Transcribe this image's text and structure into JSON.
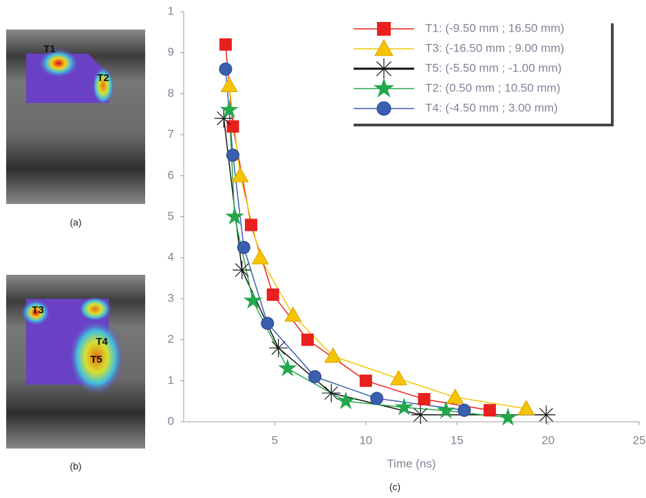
{
  "panels": [
    {
      "label": "(a)",
      "annotations": [
        "T1",
        "T2"
      ]
    },
    {
      "label": "(b)",
      "annotations": [
        "T3",
        "T4",
        "T5"
      ]
    }
  ],
  "chart_data": {
    "type": "line",
    "label": "(c)",
    "x_label": "Time (ns)",
    "xlim": [
      0,
      25
    ],
    "xticks": [
      5,
      10,
      15,
      20,
      25
    ],
    "ylim": [
      0,
      10
    ],
    "yticks": [
      0,
      1,
      2,
      3,
      4,
      5,
      6,
      7,
      8,
      9,
      {
        "value": 10,
        "label": "1"
      }
    ],
    "legend": "top-right",
    "series": [
      {
        "name": "T1: (-9.50 mm ; 16.50 mm)",
        "color": "#e8201e",
        "marker": "square",
        "x": [
          2.3,
          2.7,
          3.7,
          4.9,
          6.8,
          10.0,
          13.2,
          16.8
        ],
        "values": [
          9.2,
          7.2,
          4.8,
          3.1,
          2.0,
          1.0,
          0.55,
          0.28
        ]
      },
      {
        "name": "T3: (-16.50 mm ; 9.00 mm)",
        "color": "#f5c400",
        "marker": "triangle",
        "x": [
          2.5,
          3.1,
          4.2,
          6.0,
          8.2,
          11.8,
          14.9,
          18.8
        ],
        "values": [
          8.2,
          6.0,
          4.0,
          2.6,
          1.6,
          1.05,
          0.6,
          0.32
        ]
      },
      {
        "name": "T5: (-5.50 mm ; -1.00 mm)",
        "color": "#111111",
        "marker": "asterisk",
        "x": [
          2.2,
          3.2,
          5.2,
          8.1,
          13.0,
          19.9
        ],
        "values": [
          7.4,
          3.7,
          1.8,
          0.7,
          0.17,
          0.17
        ]
      },
      {
        "name": "T2: (0.50 mm ; 10.50 mm)",
        "color": "#22a84a",
        "marker": "star",
        "x": [
          2.5,
          2.8,
          3.8,
          5.7,
          8.9,
          12.1,
          14.4,
          17.8
        ],
        "values": [
          7.6,
          5.0,
          2.95,
          1.3,
          0.5,
          0.35,
          0.27,
          0.1
        ]
      },
      {
        "name": "T4: (-4.50 mm ; 3.00 mm)",
        "color": "#3a5fb0",
        "marker": "circle",
        "x": [
          2.3,
          2.7,
          3.3,
          4.6,
          7.2,
          10.6,
          15.4
        ],
        "values": [
          8.6,
          6.5,
          4.25,
          2.4,
          1.1,
          0.57,
          0.28
        ]
      }
    ]
  }
}
